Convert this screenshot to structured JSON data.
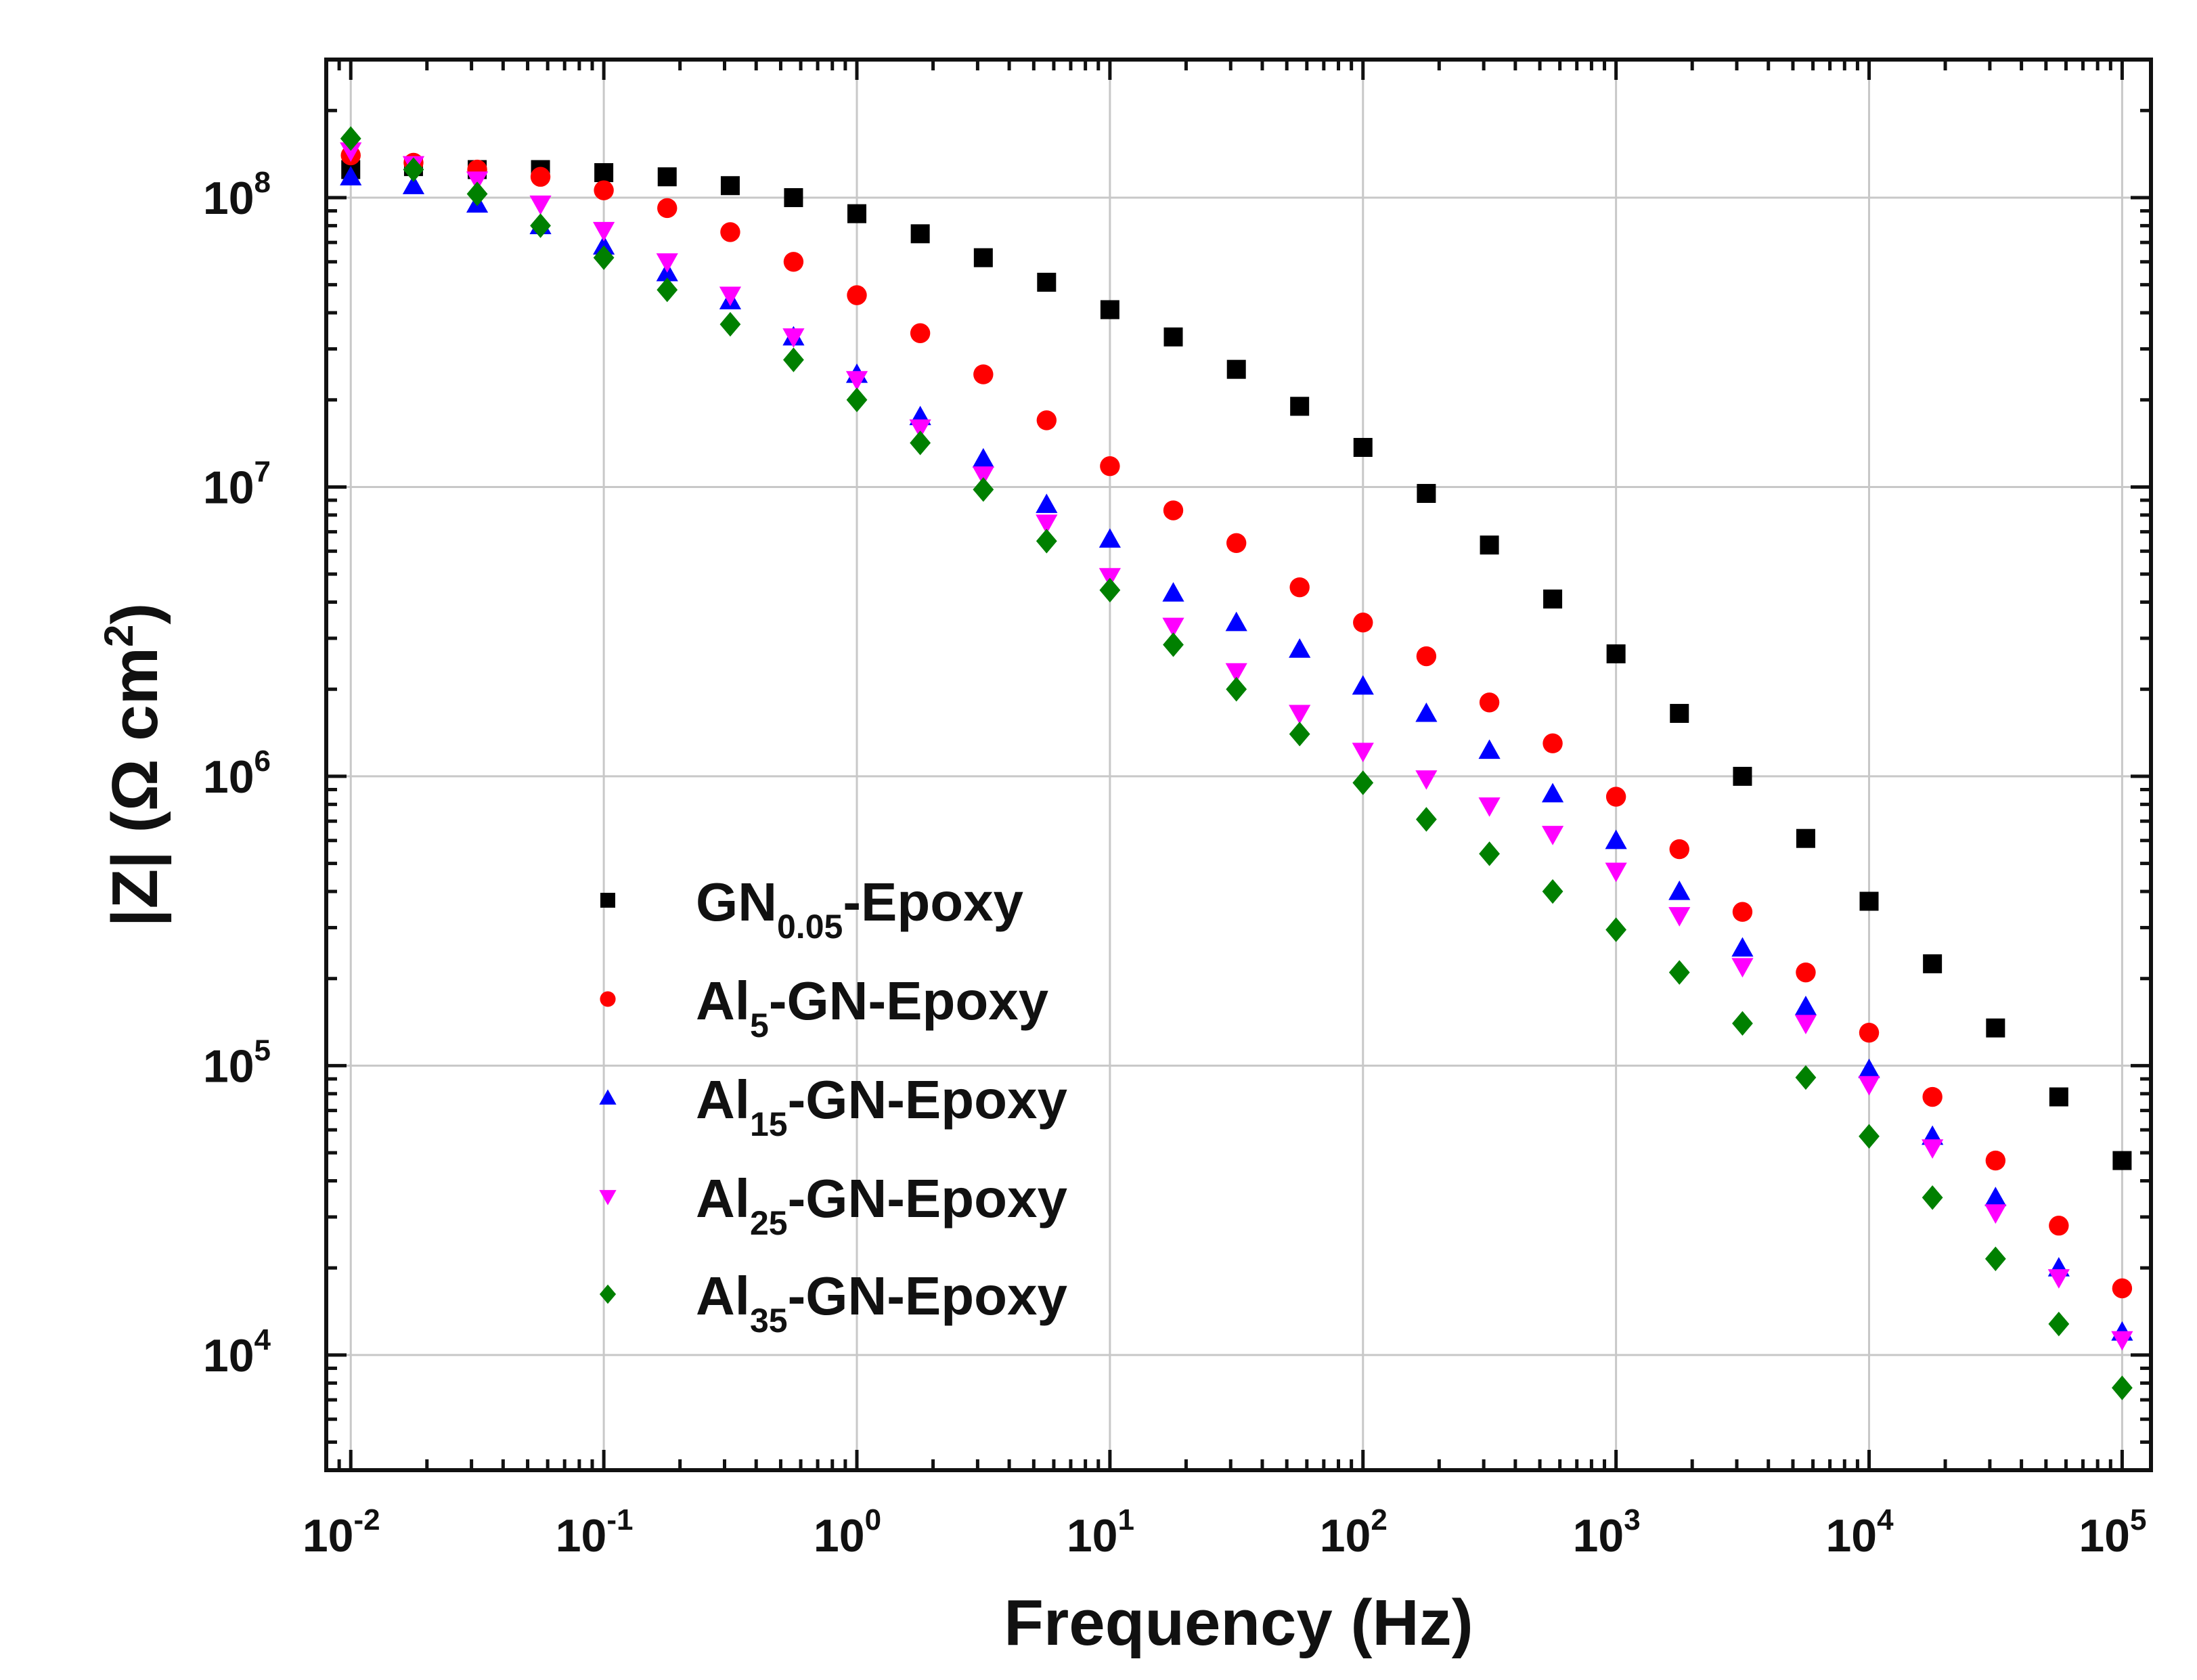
{
  "chart_data": {
    "type": "scatter",
    "title": "",
    "xlabel": "Frequency (Hz)",
    "ylabel": {
      "main": "|Z| (Ω cm",
      "sup": "2",
      "close": ")"
    },
    "xscale": "log",
    "yscale": "log",
    "xlim": [
      0.008,
      130000
    ],
    "ylim": [
      4000,
      300000000
    ],
    "grid": true,
    "legend_position": "lower-left",
    "x_ticks": [
      {
        "base": "10",
        "exp": "-2",
        "value": 0.01
      },
      {
        "base": "10",
        "exp": "-1",
        "value": 0.1
      },
      {
        "base": "10",
        "exp": "0",
        "value": 1
      },
      {
        "base": "10",
        "exp": "1",
        "value": 10
      },
      {
        "base": "10",
        "exp": "2",
        "value": 100
      },
      {
        "base": "10",
        "exp": "3",
        "value": 1000
      },
      {
        "base": "10",
        "exp": "4",
        "value": 10000
      },
      {
        "base": "10",
        "exp": "5",
        "value": 100000
      }
    ],
    "y_ticks": [
      {
        "base": "10",
        "exp": "4",
        "value": 10000
      },
      {
        "base": "10",
        "exp": "5",
        "value": 100000
      },
      {
        "base": "10",
        "exp": "6",
        "value": 1000000
      },
      {
        "base": "10",
        "exp": "7",
        "value": 10000000
      },
      {
        "base": "10",
        "exp": "8",
        "value": 100000000
      }
    ],
    "x": [
      0.01,
      0.0177,
      0.0316,
      0.0562,
      0.1,
      0.178,
      0.316,
      0.562,
      1,
      1.78,
      3.16,
      5.62,
      10,
      17.8,
      31.6,
      56.2,
      100,
      178,
      316,
      562,
      1000,
      1780,
      3160,
      5620,
      10000,
      17800,
      31600,
      56200,
      100000
    ],
    "x_note": "frequency positions read from the plotted markers",
    "series": [
      {
        "name_main": "GN",
        "name_sub": "0.05",
        "name_suffix": "-Epoxy",
        "marker": "square",
        "color": "#000000",
        "x": [
          0.01,
          0.0177,
          0.0316,
          0.0562,
          0.1,
          0.178,
          0.316,
          0.562,
          1.0,
          1.78,
          3.16,
          5.62,
          10,
          17.8,
          31.6,
          56.2,
          100,
          178,
          316,
          562,
          1000,
          1780,
          3160,
          5620,
          10000,
          17800,
          31600,
          56200,
          100000
        ],
        "values": [
          125000000,
          128000000,
          125000000,
          125000000,
          122000000,
          118000000,
          110000000,
          100000000,
          88000000,
          75000000,
          62000000,
          51000000,
          41000000,
          33000000,
          25500000,
          19000000,
          13700000,
          9500000,
          6300000,
          4100000,
          2650000,
          1650000,
          1000000,
          610000,
          370000,
          225000,
          135000,
          78000,
          47000
        ]
      },
      {
        "name_main": "Al",
        "name_sub": "5",
        "name_suffix": "-GN-Epoxy",
        "marker": "circle",
        "color": "#ff0000",
        "x": [
          0.01,
          0.0177,
          0.0316,
          0.0562,
          0.1,
          0.178,
          0.316,
          0.562,
          1.0,
          1.78,
          3.16,
          5.62,
          10,
          17.8,
          31.6,
          56.2,
          100,
          178,
          316,
          562,
          1000,
          1780,
          3160,
          5620,
          10000,
          17800,
          31600,
          56200,
          100000
        ],
        "values": [
          140000000,
          132000000,
          125000000,
          118000000,
          106000000,
          92000000,
          76000000,
          60000000,
          46000000,
          34000000,
          24500000,
          17000000,
          11800000,
          8300000,
          6400000,
          4500000,
          3400000,
          2600000,
          1800000,
          1300000,
          850000,
          560000,
          340000,
          210000,
          130000,
          78000,
          47000,
          28000,
          17000
        ]
      },
      {
        "name_main": "Al",
        "name_sub": "15",
        "name_suffix": "-GN-Epoxy",
        "marker": "triangle-up",
        "color": "#0000ff",
        "x": [
          0.01,
          0.0177,
          0.0316,
          0.0562,
          0.1,
          0.178,
          0.316,
          0.562,
          1.0,
          1.78,
          3.16,
          5.62,
          10,
          17.8,
          31.6,
          56.2,
          100,
          178,
          316,
          562,
          1000,
          1780,
          3160,
          5620,
          10000,
          17800,
          31600,
          56200,
          100000
        ],
        "values": [
          118000000,
          110000000,
          95000000,
          80000000,
          68000000,
          55000000,
          44000000,
          33000000,
          24500000,
          17500000,
          12500000,
          8700000,
          6600000,
          4300000,
          3400000,
          2750000,
          2050000,
          1650000,
          1230000,
          870000,
          600000,
          400000,
          255000,
          160000,
          97000,
          57000,
          35000,
          20000,
          12000
        ]
      },
      {
        "name_main": "Al",
        "name_sub": "25",
        "name_suffix": "-GN-Epoxy",
        "marker": "triangle-down",
        "color": "#ff00ff",
        "x": [
          0.01,
          0.0177,
          0.0316,
          0.0562,
          0.1,
          0.178,
          0.316,
          0.562,
          1.0,
          1.78,
          3.16,
          5.62,
          10,
          17.8,
          31.6,
          56.2,
          100,
          178,
          316,
          562,
          1000,
          1780,
          3160,
          5620,
          10000,
          17800,
          31600,
          56200,
          100000
        ],
        "values": [
          145000000,
          130000000,
          115000000,
          95000000,
          77000000,
          60000000,
          46000000,
          33000000,
          23500000,
          16000000,
          11000000,
          7500000,
          4900000,
          3300000,
          2300000,
          1650000,
          1220000,
          980000,
          790000,
          630000,
          470000,
          330000,
          220000,
          140000,
          86000,
          52000,
          31000,
          18500,
          11300
        ]
      },
      {
        "name_main": "Al",
        "name_sub": "35",
        "name_suffix": "-GN-Epoxy",
        "marker": "diamond",
        "color": "#008000",
        "x": [
          0.01,
          0.0177,
          0.0316,
          0.0562,
          0.1,
          0.178,
          0.316,
          0.562,
          1.0,
          1.78,
          3.16,
          5.62,
          10,
          17.8,
          31.6,
          56.2,
          100,
          178,
          316,
          562,
          1000,
          1780,
          3160,
          5620,
          10000,
          17800,
          31600,
          56200,
          100000
        ],
        "values": [
          160000000,
          125000000,
          103000000,
          80000000,
          62000000,
          48000000,
          36500000,
          27500000,
          20000000,
          14200000,
          9800000,
          6500000,
          4400000,
          2850000,
          2000000,
          1400000,
          950000,
          710000,
          540000,
          400000,
          295000,
          210000,
          140000,
          91000,
          57000,
          35000,
          21500,
          12800,
          7700
        ]
      }
    ]
  }
}
